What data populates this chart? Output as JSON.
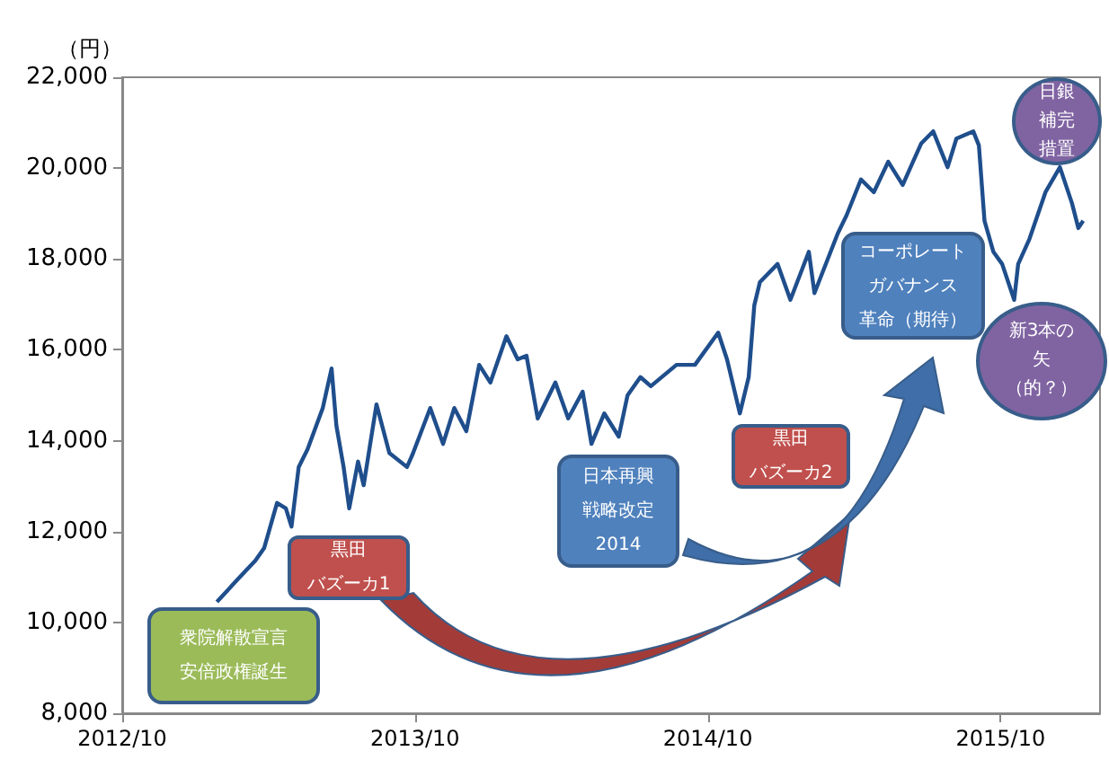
{
  "chart_data": {
    "type": "line",
    "ylabel": "（円）",
    "x": [
      "2013-01-27",
      "2013-02-21",
      "2013-03-16",
      "2013-03-27",
      "2013-04-12",
      "2013-04-23",
      "2013-04-30",
      "2013-05-09",
      "2013-05-20",
      "2013-06-08",
      "2013-06-19",
      "2013-06-25",
      "2013-07-04",
      "2013-07-11",
      "2013-07-22",
      "2013-07-29",
      "2013-08-14",
      "2013-08-30",
      "2013-09-21",
      "2013-09-28",
      "2013-10-20",
      "2013-11-05",
      "2013-11-19",
      "2013-12-04",
      "2013-12-20",
      "2014-01-03",
      "2014-01-23",
      "2014-02-06",
      "2014-02-17",
      "2014-03-03",
      "2014-03-25",
      "2014-04-10",
      "2014-04-28",
      "2014-05-09",
      "2014-05-25",
      "2014-06-12",
      "2014-06-23",
      "2014-07-09",
      "2014-07-22",
      "2014-08-23",
      "2014-09-15",
      "2014-10-14",
      "2014-10-25",
      "2014-11-10",
      "2014-11-21",
      "2014-11-28",
      "2014-12-05",
      "2014-12-27",
      "2015-01-12",
      "2015-02-04",
      "2015-02-11",
      "2015-03-12",
      "2015-03-23",
      "2015-04-10",
      "2015-04-26",
      "2015-05-14",
      "2015-06-01",
      "2015-06-24",
      "2015-07-09",
      "2015-07-27",
      "2015-08-07",
      "2015-08-28",
      "2015-09-04",
      "2015-09-11",
      "2015-09-22",
      "2015-10-03",
      "2015-10-18",
      "2015-10-23",
      "2015-11-06",
      "2015-11-26",
      "2015-12-14",
      "2015-12-29",
      "2016-01-06",
      "2016-01-12"
    ],
    "series": [
      {
        "color": "#1f4e8c",
        "values": [
          10450,
          10930,
          11360,
          11640,
          12630,
          12510,
          12110,
          13420,
          13810,
          14720,
          15590,
          14330,
          13420,
          12510,
          13540,
          13020,
          14800,
          13730,
          13420,
          13700,
          14720,
          13930,
          14720,
          14210,
          15670,
          15280,
          16300,
          15790,
          15870,
          14490,
          15280,
          14490,
          15080,
          13930,
          14600,
          14090,
          15000,
          15400,
          15200,
          15670,
          15670,
          16380,
          15790,
          14600,
          15400,
          16980,
          17490,
          17890,
          17100,
          18160,
          17250,
          18560,
          18960,
          19750,
          19470,
          20140,
          19630,
          20540,
          20810,
          20020,
          20650,
          20810,
          20500,
          18840,
          18160,
          17890,
          17100,
          17890,
          18440,
          19470,
          20020,
          19230,
          18680,
          18840
        ]
      }
    ],
    "xlim": [
      "2012-10-01",
      "2016-02-02"
    ],
    "xticks": [
      {
        "value": "2012-10",
        "label": "2012/10"
      },
      {
        "value": "2013-10",
        "label": "2013/10"
      },
      {
        "value": "2014-10",
        "label": "2014/10"
      },
      {
        "value": "2015-10",
        "label": "2015/10"
      }
    ],
    "ylim": [
      8000,
      22000
    ],
    "yticks": [
      {
        "value": 8000,
        "label": "8,000"
      },
      {
        "value": 10000,
        "label": "10,000"
      },
      {
        "value": 12000,
        "label": "12,000"
      },
      {
        "value": 14000,
        "label": "14,000"
      },
      {
        "value": 16000,
        "label": "16,000"
      },
      {
        "value": 18000,
        "label": "18,000"
      },
      {
        "value": 20000,
        "label": "20,000"
      },
      {
        "value": 22000,
        "label": "22,000"
      }
    ],
    "grid": false,
    "marker": "none",
    "line_style": "solid",
    "annotations": [
      "衆院解散宣言安倍政権誕生",
      "黒田バズーカ1",
      "日本再興戦略改定 2014",
      "黒田バズーカ2",
      "コーポレートガバナンス革命（期待）",
      "日銀補完措置",
      "新3本の矢（的？）"
    ]
  }
}
